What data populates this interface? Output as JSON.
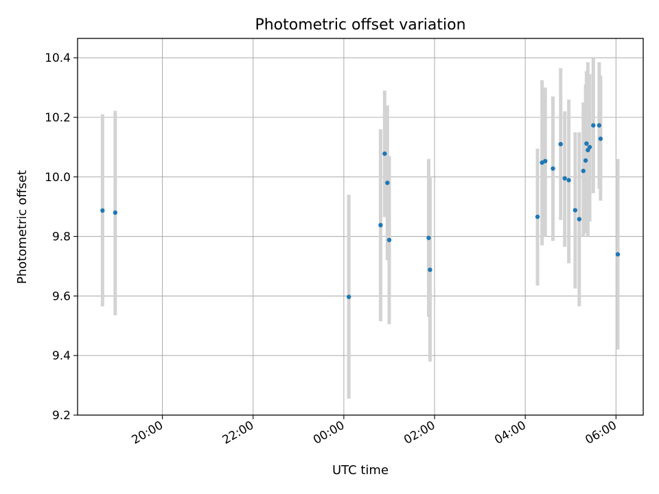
{
  "chart_data": {
    "type": "scatter",
    "title": "Photometric offset variation",
    "xlabel": "UTC time",
    "ylabel": "Photometric offset",
    "x_unit": "hours (UTC, continuing past midnight)",
    "xlim": [
      18.13,
      30.6
    ],
    "ylim": [
      9.2,
      10.465
    ],
    "grid": true,
    "colors": {
      "point": "#1f77b4",
      "errorbar": "#d3d3d3",
      "grid": "#b0b0b0"
    },
    "x_ticks": [
      {
        "value": 20,
        "label": "20:00"
      },
      {
        "value": 22,
        "label": "22:00"
      },
      {
        "value": 24,
        "label": "00:00"
      },
      {
        "value": 26,
        "label": "02:00"
      },
      {
        "value": 28,
        "label": "04:00"
      },
      {
        "value": 30,
        "label": "06:00"
      }
    ],
    "y_ticks": [
      {
        "value": 9.2,
        "label": "9.2"
      },
      {
        "value": 9.4,
        "label": "9.4"
      },
      {
        "value": 9.6,
        "label": "9.6"
      },
      {
        "value": 9.8,
        "label": "9.8"
      },
      {
        "value": 10.0,
        "label": "10.0"
      },
      {
        "value": 10.2,
        "label": "10.2"
      },
      {
        "value": 10.4,
        "label": "10.4"
      }
    ],
    "points": [
      {
        "x": 18.68,
        "y": 9.887,
        "lo": 9.565,
        "hi": 10.21
      },
      {
        "x": 18.96,
        "y": 9.88,
        "lo": 9.535,
        "hi": 10.222
      },
      {
        "x": 24.11,
        "y": 9.597,
        "lo": 9.255,
        "hi": 9.94
      },
      {
        "x": 24.81,
        "y": 9.838,
        "lo": 9.515,
        "hi": 10.16
      },
      {
        "x": 24.9,
        "y": 10.078,
        "lo": 9.865,
        "hi": 10.29
      },
      {
        "x": 24.96,
        "y": 9.98,
        "lo": 9.72,
        "hi": 10.24
      },
      {
        "x": 25.0,
        "y": 9.788,
        "lo": 9.505,
        "hi": 10.07
      },
      {
        "x": 25.87,
        "y": 9.795,
        "lo": 9.53,
        "hi": 10.06
      },
      {
        "x": 25.9,
        "y": 9.688,
        "lo": 9.38,
        "hi": 10.0
      },
      {
        "x": 28.27,
        "y": 9.866,
        "lo": 9.635,
        "hi": 10.095
      },
      {
        "x": 28.37,
        "y": 10.048,
        "lo": 9.77,
        "hi": 10.325
      },
      {
        "x": 28.44,
        "y": 10.053,
        "lo": 9.8,
        "hi": 10.3
      },
      {
        "x": 28.61,
        "y": 10.028,
        "lo": 9.785,
        "hi": 10.27
      },
      {
        "x": 28.78,
        "y": 10.11,
        "lo": 9.855,
        "hi": 10.365
      },
      {
        "x": 28.87,
        "y": 9.995,
        "lo": 9.765,
        "hi": 10.22
      },
      {
        "x": 28.96,
        "y": 9.989,
        "lo": 9.71,
        "hi": 10.26
      },
      {
        "x": 29.1,
        "y": 9.888,
        "lo": 9.625,
        "hi": 10.15
      },
      {
        "x": 29.19,
        "y": 9.858,
        "lo": 9.565,
        "hi": 10.15
      },
      {
        "x": 29.28,
        "y": 10.02,
        "lo": 9.8,
        "hi": 10.25
      },
      {
        "x": 29.33,
        "y": 10.055,
        "lo": 9.81,
        "hi": 10.31
      },
      {
        "x": 29.35,
        "y": 10.112,
        "lo": 9.86,
        "hi": 10.355
      },
      {
        "x": 29.38,
        "y": 10.09,
        "lo": 9.8,
        "hi": 10.385
      },
      {
        "x": 29.42,
        "y": 10.1,
        "lo": 9.85,
        "hi": 10.345
      },
      {
        "x": 29.5,
        "y": 10.173,
        "lo": 9.945,
        "hi": 10.4
      },
      {
        "x": 29.63,
        "y": 10.173,
        "lo": 9.96,
        "hi": 10.385
      },
      {
        "x": 29.66,
        "y": 10.128,
        "lo": 9.92,
        "hi": 10.34
      },
      {
        "x": 30.04,
        "y": 9.74,
        "lo": 9.42,
        "hi": 10.06
      }
    ]
  }
}
